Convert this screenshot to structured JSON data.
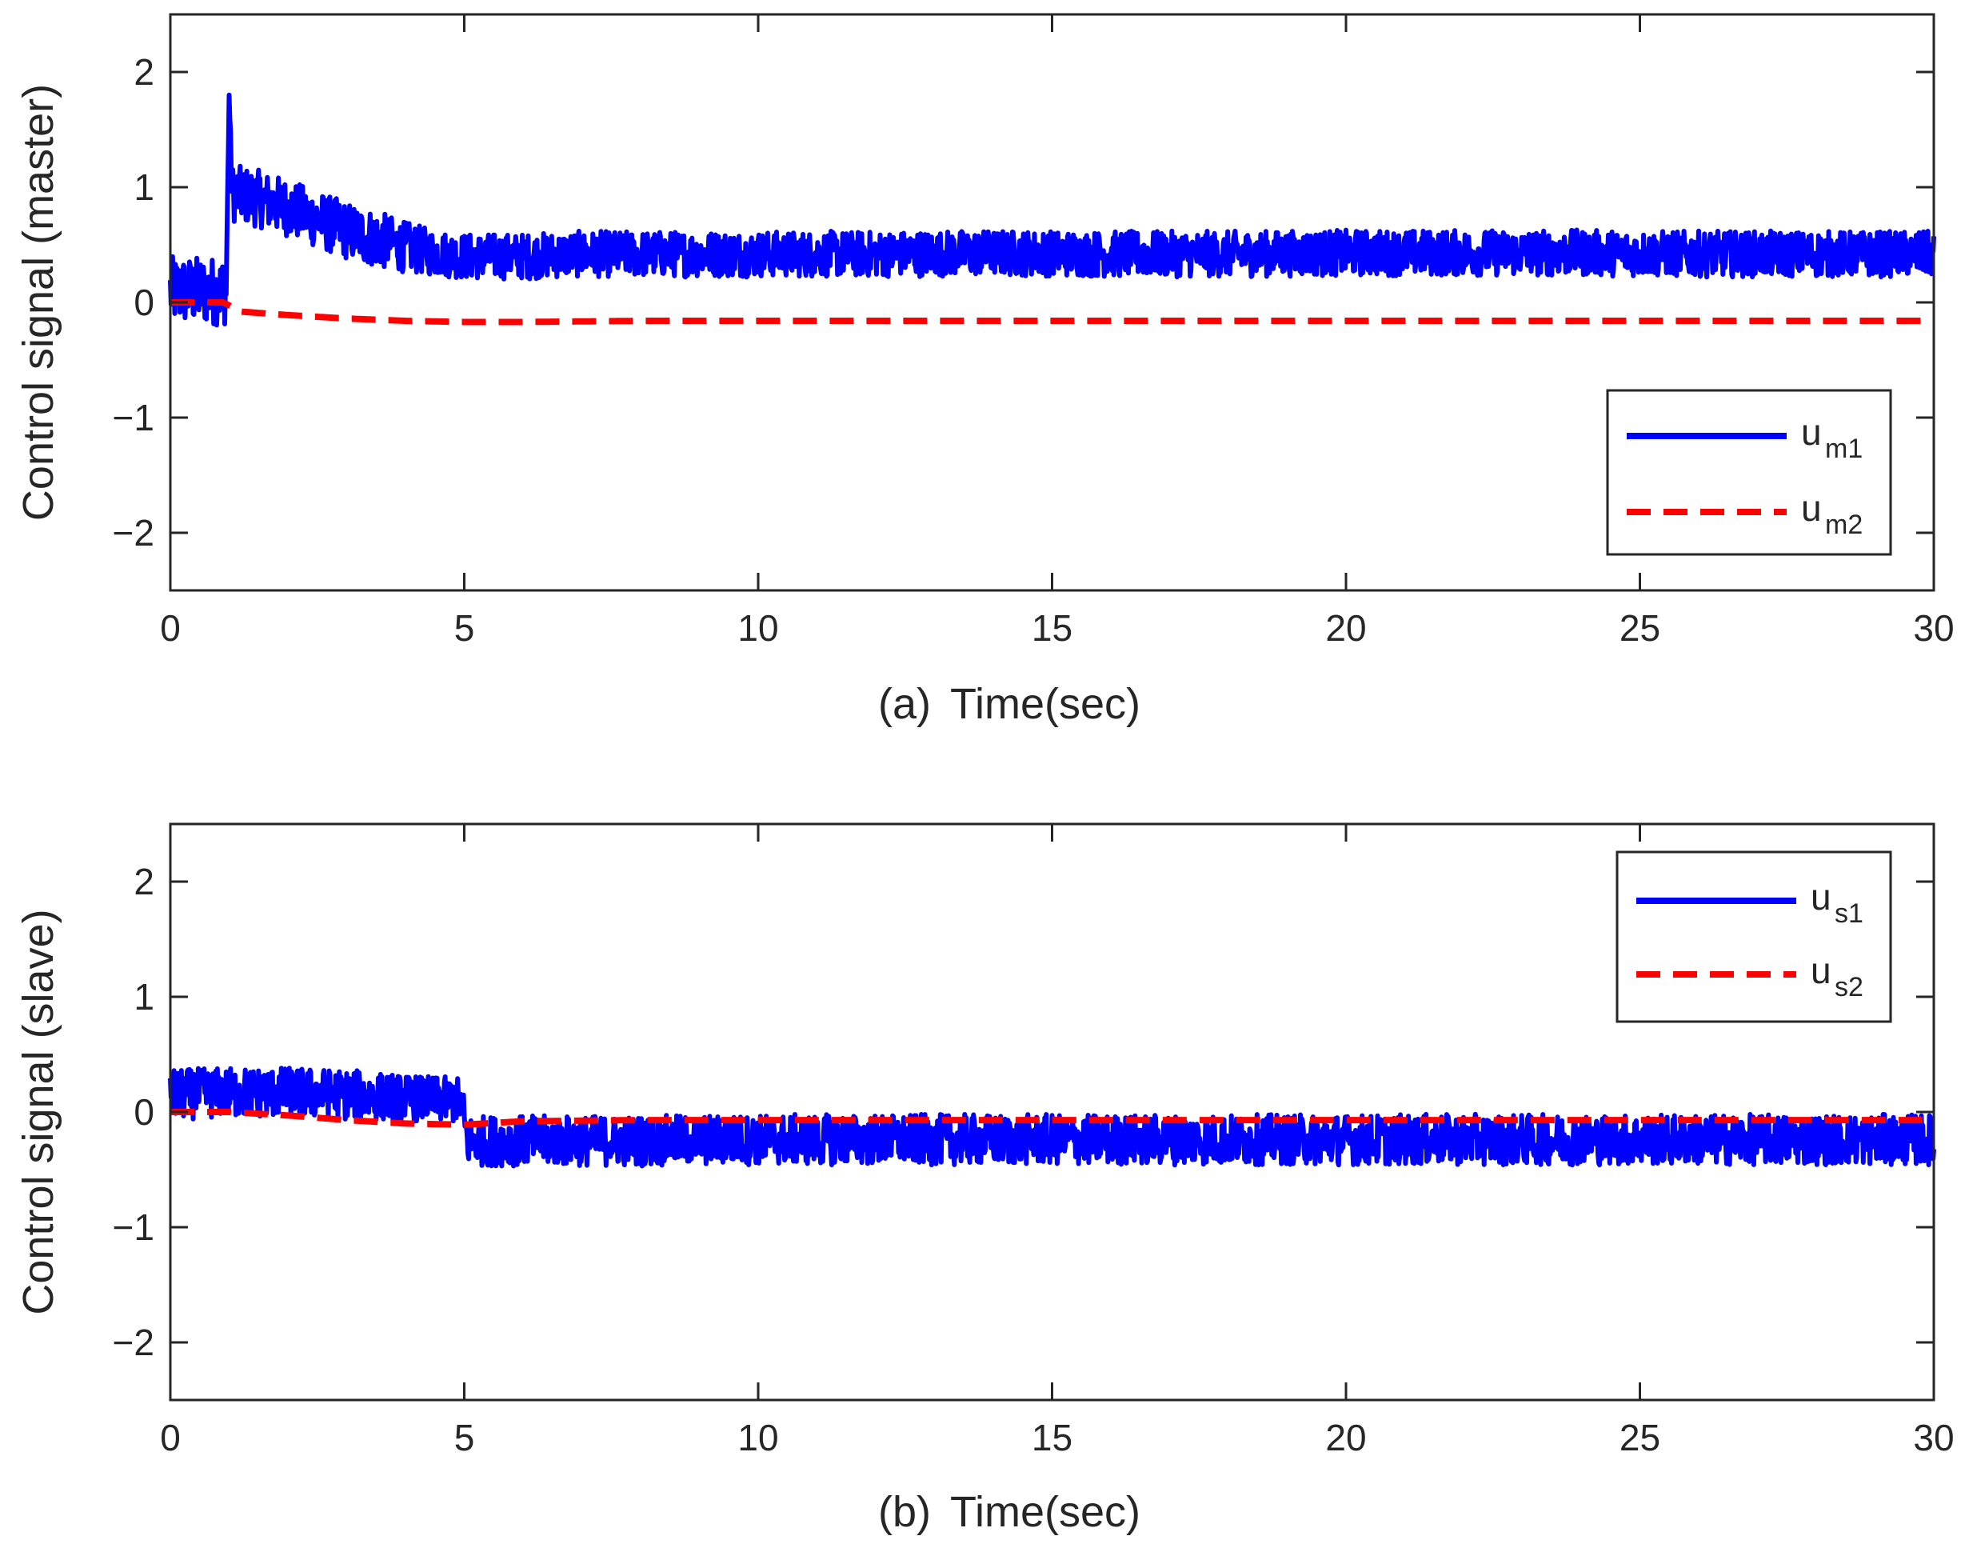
{
  "chart_data": [
    {
      "type": "line",
      "panel": "a",
      "caption": "(a)",
      "xlabel": "Time(sec)",
      "ylabel": "Control signal (master)",
      "xlim": [
        0,
        30
      ],
      "ylim": [
        -2.5,
        2.5
      ],
      "xticks": [
        0,
        5,
        10,
        15,
        20,
        25,
        30
      ],
      "xtick_labels": [
        "0",
        "5",
        "10",
        "15",
        "20",
        "25",
        "30"
      ],
      "yticks": [
        2,
        1,
        0,
        -1,
        -2
      ],
      "ytick_labels": [
        "2",
        "1",
        "0",
        "−1",
        "−2"
      ],
      "grid": false,
      "legend_position": "right",
      "series": [
        {
          "name": "u_m1",
          "legend_base": "u",
          "legend_sub": "m1",
          "color": "#0000FF",
          "style": "solid",
          "x": [
            0,
            0.5,
            0.95,
            1.0,
            1.05,
            1.5,
            2,
            2.5,
            3,
            3.5,
            4,
            4.5,
            5,
            6,
            7,
            8,
            9,
            10,
            12,
            14,
            16,
            18,
            20,
            22,
            24,
            26,
            28,
            30
          ],
          "values": [
            0.1,
            0.1,
            0.1,
            1.8,
            0.95,
            0.9,
            0.82,
            0.72,
            0.62,
            0.55,
            0.48,
            0.43,
            0.4,
            0.4,
            0.42,
            0.42,
            0.42,
            0.42,
            0.42,
            0.43,
            0.42,
            0.42,
            0.43,
            0.43,
            0.43,
            0.42,
            0.42,
            0.42
          ],
          "noise": [
            0.3,
            0.3,
            0.3,
            0,
            0.25,
            0.25,
            0.25,
            0.25,
            0.25,
            0.25,
            0.22,
            0.2,
            0.2,
            0.2,
            0.2,
            0.2,
            0.2,
            0.2,
            0.2,
            0.2,
            0.2,
            0.2,
            0.2,
            0.2,
            0.2,
            0.2,
            0.2,
            0.2
          ]
        },
        {
          "name": "u_m2",
          "legend_base": "u",
          "legend_sub": "m2",
          "color": "#FF0000",
          "style": "dashed",
          "x": [
            0,
            0.9,
            1.2,
            2,
            3,
            4,
            5,
            6,
            8,
            10,
            15,
            20,
            25,
            30
          ],
          "values": [
            0.0,
            0.0,
            -0.08,
            -0.11,
            -0.14,
            -0.16,
            -0.17,
            -0.17,
            -0.16,
            -0.16,
            -0.16,
            -0.16,
            -0.16,
            -0.16
          ],
          "noise": [
            0,
            0,
            0,
            0,
            0,
            0,
            0,
            0,
            0,
            0,
            0,
            0,
            0,
            0
          ]
        }
      ]
    },
    {
      "type": "line",
      "panel": "b",
      "caption": "(b)",
      "xlabel": "Time(sec)",
      "ylabel": "Control signal (slave)",
      "xlim": [
        0,
        30
      ],
      "ylim": [
        -2.5,
        2.5
      ],
      "xticks": [
        0,
        5,
        10,
        15,
        20,
        25,
        30
      ],
      "xtick_labels": [
        "0",
        "5",
        "10",
        "15",
        "20",
        "25",
        "30"
      ],
      "yticks": [
        2,
        1,
        0,
        -1,
        -2
      ],
      "ytick_labels": [
        "2",
        "1",
        "0",
        "−1",
        "−2"
      ],
      "grid": false,
      "legend_position": "top-right",
      "series": [
        {
          "name": "u_s1",
          "legend_base": "u",
          "legend_sub": "s1",
          "color": "#0000FF",
          "style": "solid",
          "x": [
            0,
            1,
            2,
            3,
            4,
            4.95,
            5.05,
            6,
            7,
            8,
            10,
            15,
            20,
            25,
            30
          ],
          "values": [
            0.15,
            0.17,
            0.17,
            0.15,
            0.12,
            0.1,
            -0.25,
            -0.25,
            -0.25,
            -0.25,
            -0.24,
            -0.24,
            -0.24,
            -0.24,
            -0.24
          ],
          "noise": [
            0.22,
            0.22,
            0.22,
            0.22,
            0.2,
            0.2,
            0.22,
            0.22,
            0.22,
            0.22,
            0.22,
            0.22,
            0.22,
            0.22,
            0.22
          ]
        },
        {
          "name": "u_s2",
          "legend_base": "u",
          "legend_sub": "s2",
          "color": "#FF0000",
          "style": "dashed",
          "x": [
            0,
            1,
            2,
            3,
            4,
            5,
            6,
            8,
            10,
            15,
            20,
            25,
            30
          ],
          "values": [
            0.0,
            0.0,
            -0.03,
            -0.07,
            -0.1,
            -0.11,
            -0.08,
            -0.07,
            -0.07,
            -0.07,
            -0.07,
            -0.07,
            -0.07
          ],
          "noise": [
            0,
            0,
            0,
            0,
            0,
            0,
            0,
            0,
            0,
            0,
            0,
            0,
            0
          ]
        }
      ]
    }
  ]
}
